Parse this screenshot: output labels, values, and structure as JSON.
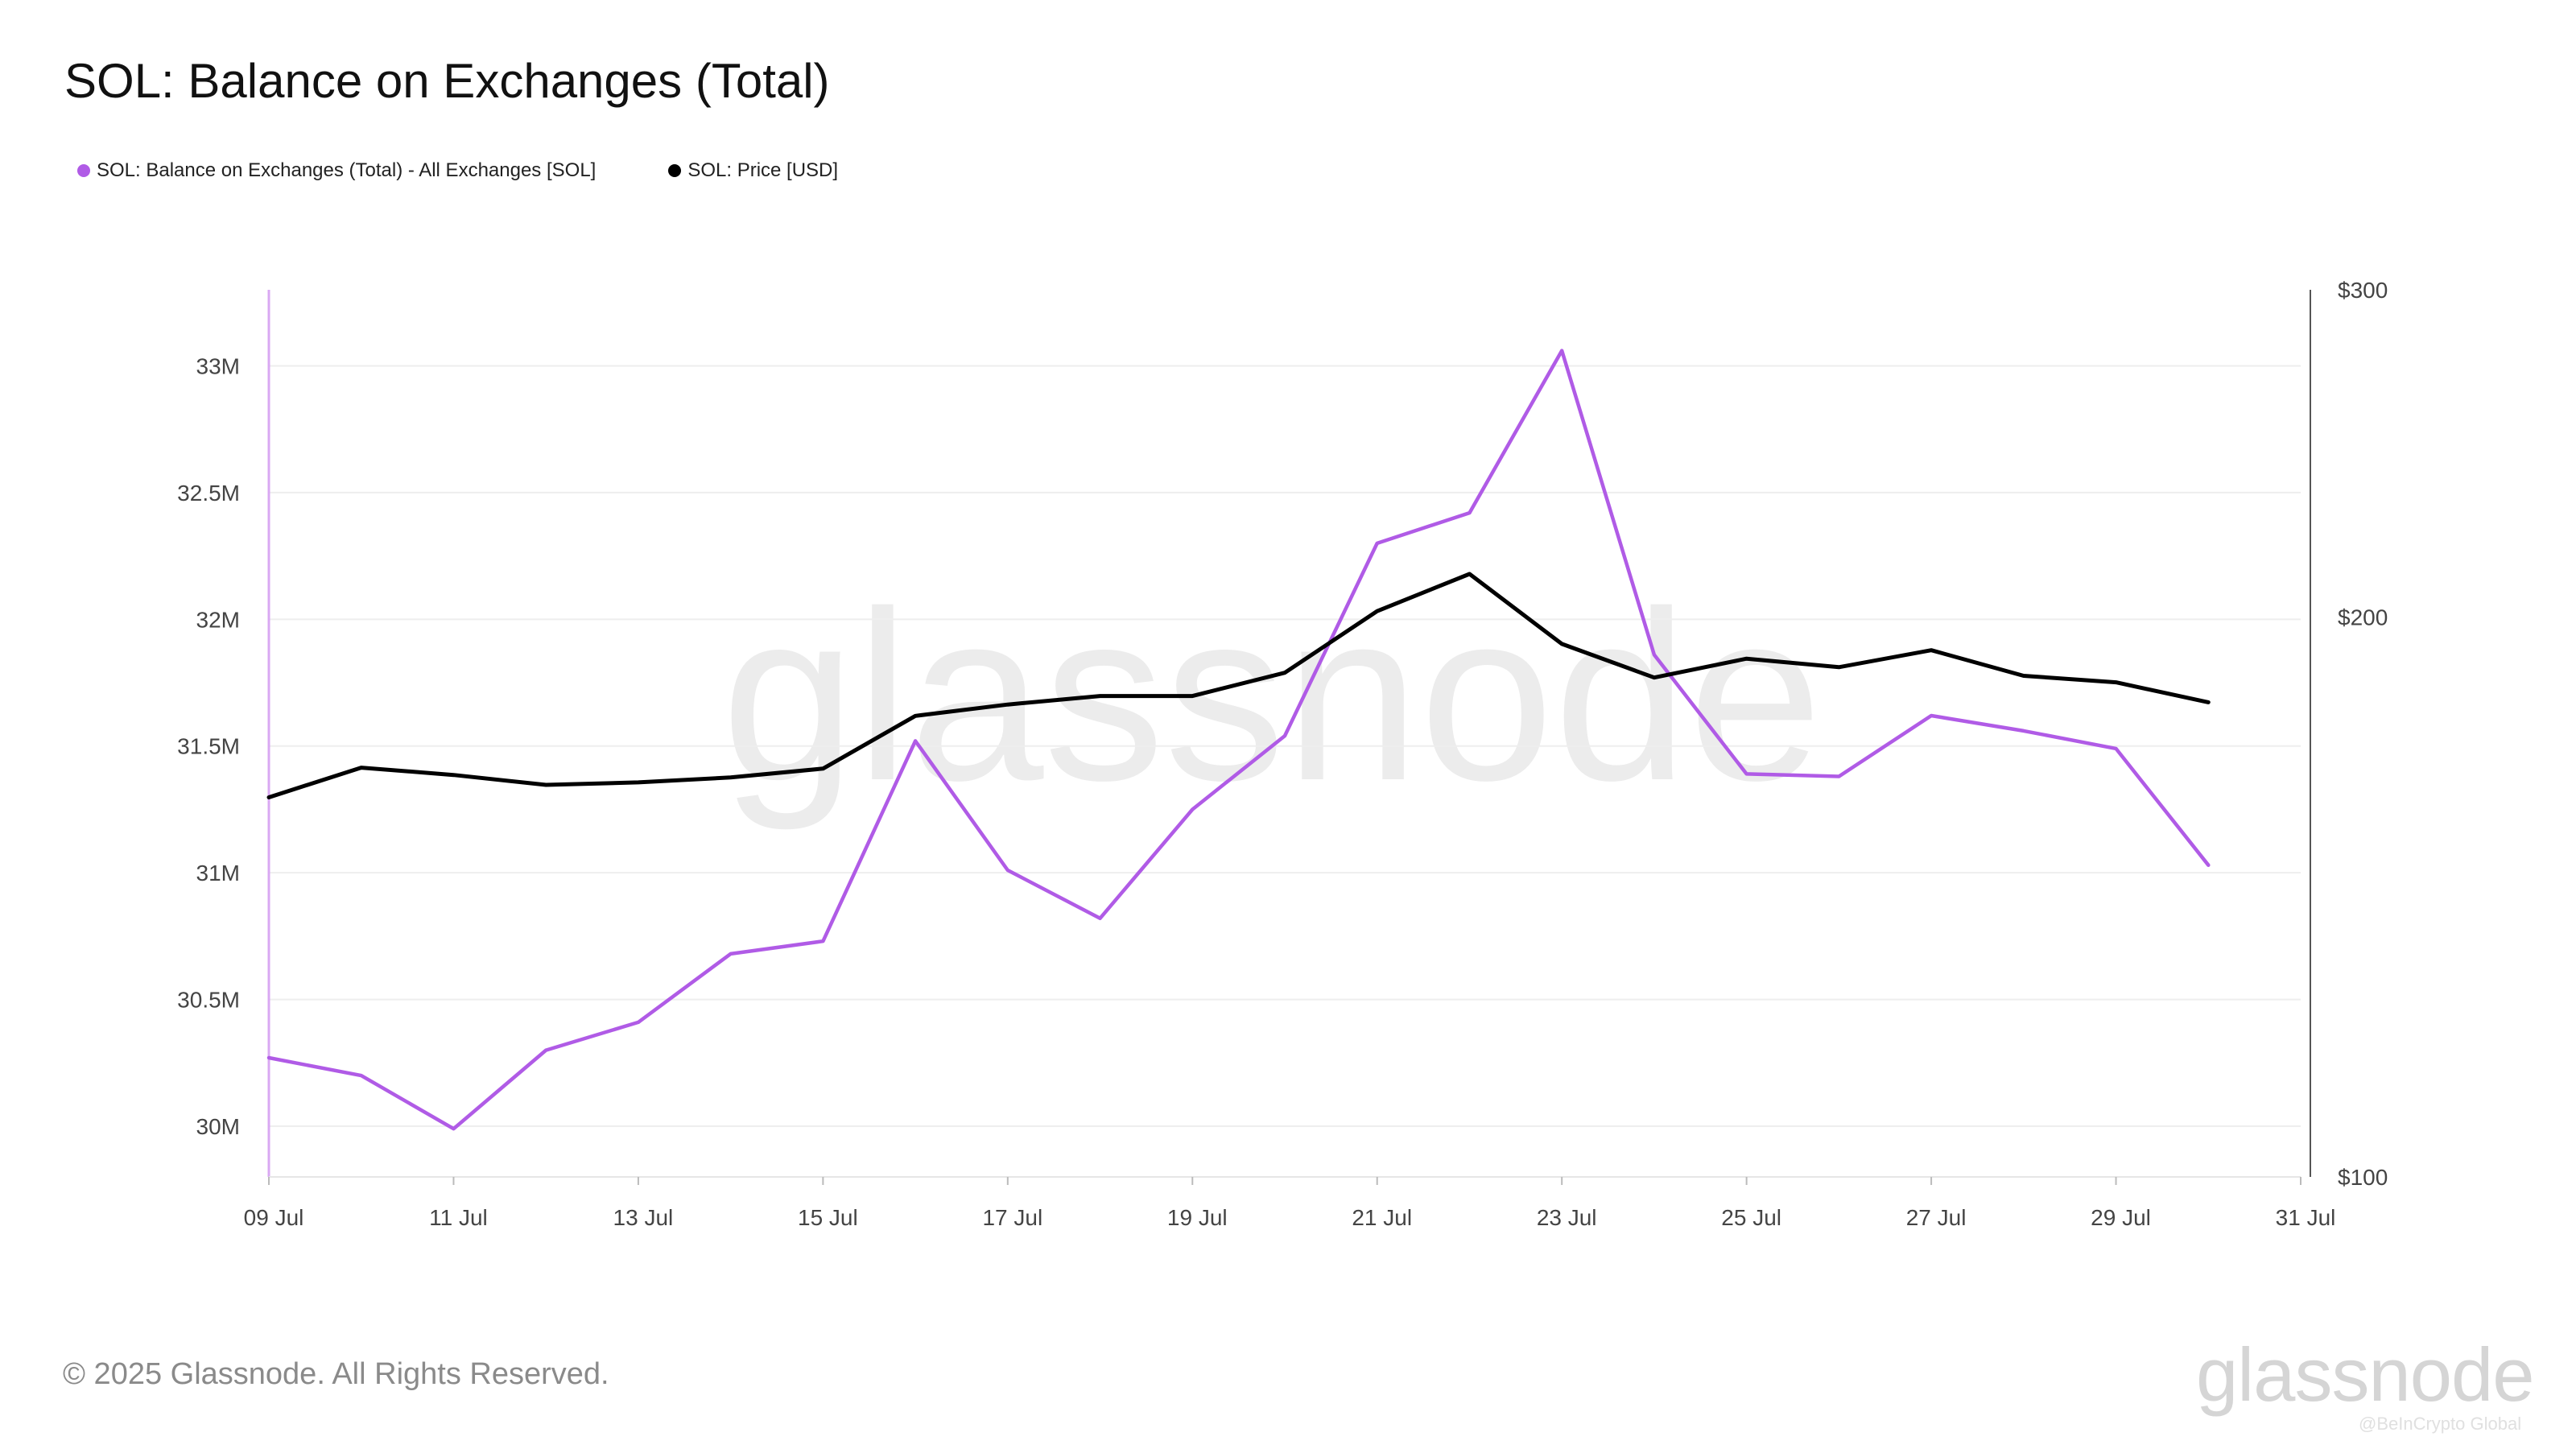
{
  "title": "SOL: Balance on Exchanges (Total)",
  "legend": [
    {
      "label": "SOL: Balance on Exchanges (Total) - All Exchanges [SOL]",
      "color": "#b05be6"
    },
    {
      "label": "SOL: Price [USD]",
      "color": "#000000"
    }
  ],
  "footer": "© 2025 Glassnode. All Rights Reserved.",
  "brand": "glassnode",
  "watermark": "glassnode",
  "credit": "@BeInCrypto Global",
  "chart_data": {
    "type": "line",
    "x": [
      "09 Jul",
      "10 Jul",
      "11 Jul",
      "12 Jul",
      "13 Jul",
      "14 Jul",
      "15 Jul",
      "16 Jul",
      "17 Jul",
      "18 Jul",
      "19 Jul",
      "20 Jul",
      "21 Jul",
      "22 Jul",
      "23 Jul",
      "24 Jul",
      "25 Jul",
      "26 Jul",
      "27 Jul",
      "28 Jul",
      "29 Jul",
      "30 Jul"
    ],
    "x_ticks": [
      "09 Jul",
      "11 Jul",
      "13 Jul",
      "15 Jul",
      "17 Jul",
      "19 Jul",
      "21 Jul",
      "23 Jul",
      "25 Jul",
      "27 Jul",
      "29 Jul",
      "31 Jul"
    ],
    "y_left": {
      "ticks": [
        30000000,
        30500000,
        31000000,
        31500000,
        32000000,
        32500000,
        33000000
      ],
      "tick_labels": [
        "30M",
        "30.5M",
        "31M",
        "31.5M",
        "32M",
        "32.5M",
        "33M"
      ],
      "range": [
        29800000,
        33300000
      ]
    },
    "y_right": {
      "ticks": [
        100,
        200,
        300
      ],
      "tick_labels": [
        "$100",
        "$200",
        "$300"
      ],
      "range": [
        100,
        300
      ],
      "scale": "log"
    },
    "grid": true,
    "legend_position": "top-left",
    "series": [
      {
        "name": "SOL: Balance on Exchanges (Total) - All Exchanges [SOL]",
        "axis": "left",
        "color": "#b05be6",
        "values": [
          30270000,
          30200000,
          29990000,
          30300000,
          30410000,
          30680000,
          30730000,
          31520000,
          31010000,
          30820000,
          31250000,
          31540000,
          32300000,
          32420000,
          33060000,
          31860000,
          31390000,
          31380000,
          31620000,
          31560000,
          31490000,
          31030000
        ]
      },
      {
        "name": "SOL: Price [USD]",
        "axis": "right",
        "color": "#000000",
        "values": [
          160,
          166,
          164.5,
          162.5,
          163,
          164,
          165.8,
          177,
          179.5,
          181.4,
          181.4,
          186.7,
          201.5,
          211,
          193.5,
          185.6,
          190,
          188,
          192,
          186,
          184.5,
          180
        ]
      }
    ]
  }
}
